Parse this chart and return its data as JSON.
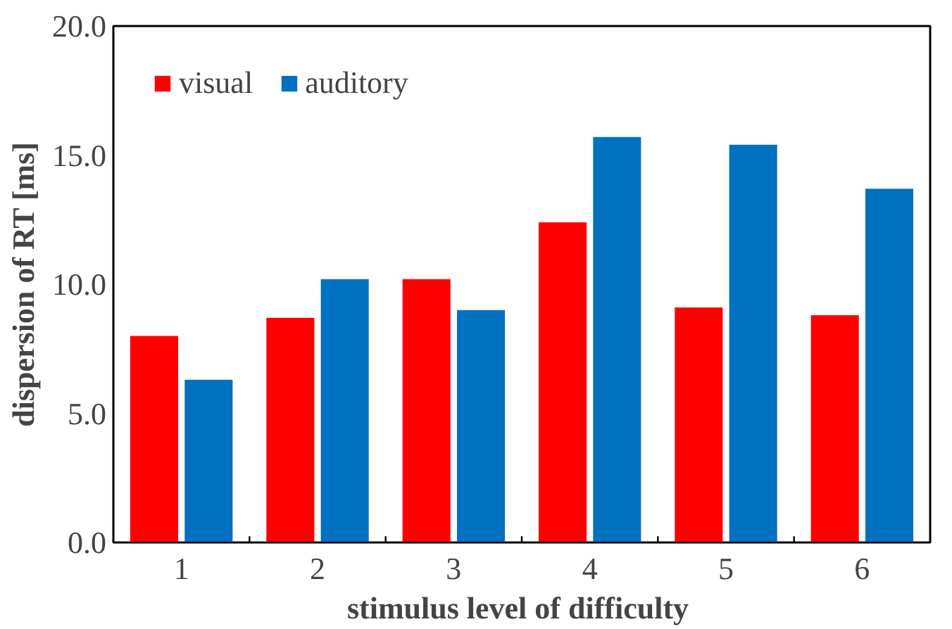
{
  "chart_data": {
    "type": "bar",
    "xlabel": "stimulus  level of difficulty",
    "ylabel": "dispersion of RT [ms]",
    "categories": [
      "1",
      "2",
      "3",
      "4",
      "5",
      "6"
    ],
    "series": [
      {
        "name": "visual",
        "color": "#ff0000",
        "values": [
          8.0,
          8.7,
          10.2,
          12.4,
          9.1,
          8.8
        ]
      },
      {
        "name": "auditory",
        "color": "#0070c0",
        "values": [
          6.3,
          10.2,
          9.0,
          15.7,
          15.4,
          13.7
        ]
      }
    ],
    "ylim": [
      0,
      20
    ],
    "yticks": [
      {
        "value": 0,
        "label": "0.0"
      },
      {
        "value": 5,
        "label": "5.0"
      },
      {
        "value": 10,
        "label": "10.0"
      },
      {
        "value": 15,
        "label": "15.0"
      },
      {
        "value": 20,
        "label": "20.0"
      }
    ],
    "grid": false,
    "legend": "top left"
  }
}
